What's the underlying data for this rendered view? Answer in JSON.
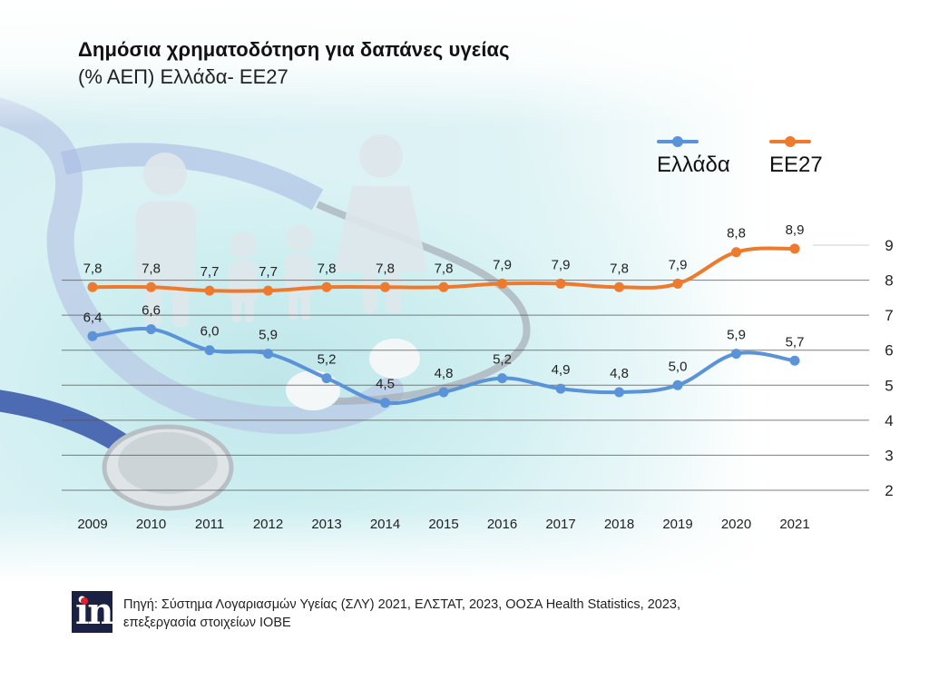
{
  "colors": {
    "greece": "#5b93d9",
    "eu27": "#ee7a2e",
    "logo_bg": "#1b2142",
    "logo_dot": "#e5202e",
    "grid": "#555555"
  },
  "logo": {
    "text": "in"
  },
  "footer": {
    "source_line1": "Πηγή: Σύστημα Λογαριασμών Υγείας (ΣΛΥ) 2021, ΕΛΣΤΑΤ, 2023, ΟΟΣΑ Health Statistics, 2023,",
    "source_line2": "επεξεργασία στοιχείων ΙΟΒΕ"
  },
  "chart_data": {
    "type": "line",
    "title": "Δημόσια χρηματοδότηση για δαπάνες υγείας",
    "subtitle": "(% ΑΕΠ) Ελλάδα- ΕΕ27",
    "xlabel": "",
    "ylabel": "",
    "x": [
      "2009",
      "2010",
      "2011",
      "2012",
      "2013",
      "2014",
      "2015",
      "2016",
      "2017",
      "2018",
      "2019",
      "2020",
      "2021"
    ],
    "series": [
      {
        "name": "Ελλάδα",
        "key": "greece",
        "values": [
          6.4,
          6.6,
          6.0,
          5.9,
          5.2,
          4.5,
          4.8,
          5.2,
          4.9,
          4.8,
          5.0,
          5.9,
          5.7
        ],
        "labels": [
          "6,4",
          "6,6",
          "6,0",
          "5,9",
          "5,2",
          "4,5",
          "4,8",
          "5,2",
          "4,9",
          "4,8",
          "5,0",
          "5,9",
          "5,7"
        ]
      },
      {
        "name": "ΕΕ27",
        "key": "eu27",
        "values": [
          7.8,
          7.8,
          7.7,
          7.7,
          7.8,
          7.8,
          7.8,
          7.9,
          7.9,
          7.8,
          7.9,
          8.8,
          8.9
        ],
        "labels": [
          "7,8",
          "7,8",
          "7,7",
          "7,7",
          "7,8",
          "7,8",
          "7,8",
          "7,9",
          "7,9",
          "7,8",
          "7,9",
          "8,8",
          "8,9"
        ]
      }
    ],
    "yticks": [
      "2",
      "3",
      "4",
      "5",
      "6",
      "7",
      "8",
      "9"
    ],
    "ylim": [
      2,
      9
    ],
    "grid": true,
    "y_axis_side": "right",
    "legend": {
      "position": "top-right",
      "entries": [
        "Ελλάδα",
        "ΕΕ27"
      ]
    }
  }
}
